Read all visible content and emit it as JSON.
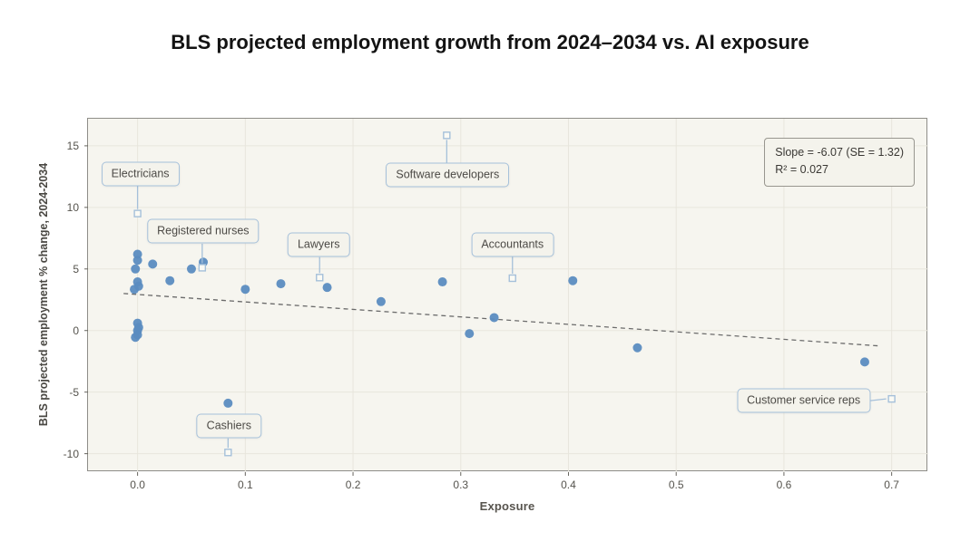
{
  "page": {
    "title": "BLS projected employment growth from 2024–2034 vs. AI exposure"
  },
  "chart_data": {
    "type": "scatter",
    "title": "BLS projected employment growth from 2024–2034 vs. AI exposure",
    "xlabel": "Exposure",
    "ylabel": "BLS projected employment % change, 2024-2034",
    "xlim": [
      -0.046,
      0.734
    ],
    "ylim": [
      -11.5,
      17.2
    ],
    "x_ticks": [
      0.0,
      0.1,
      0.2,
      0.3,
      0.4,
      0.5,
      0.6,
      0.7
    ],
    "x_tick_labels": [
      "0.0",
      "0.1",
      "0.2",
      "0.3",
      "0.4",
      "0.5",
      "0.6",
      "0.7"
    ],
    "y_ticks": [
      -10,
      -5,
      0,
      5,
      10,
      15
    ],
    "y_tick_labels": [
      "-10",
      "-5",
      "0",
      "5",
      "10",
      "15"
    ],
    "grid": true,
    "legend": null,
    "colors": {
      "point": "#5b8cc0",
      "plot_bg": "#f6f5ef",
      "grid": "#e8e6dd",
      "callout_border": "#a5c0da",
      "marker_fill": "#fbfaf4",
      "trend": "#6b6b6b",
      "tick": "#66645e"
    },
    "points": [
      [
        0.0,
        6.2
      ],
      [
        0.0,
        5.7
      ],
      [
        -0.002,
        5.0
      ],
      [
        0.0,
        3.95
      ],
      [
        0.001,
        3.6
      ],
      [
        -0.003,
        3.35
      ],
      [
        0.0,
        0.6
      ],
      [
        0.001,
        0.25
      ],
      [
        0.0,
        0.0
      ],
      [
        0.0,
        -0.35
      ],
      [
        -0.002,
        -0.55
      ],
      [
        0.014,
        5.4
      ],
      [
        0.03,
        4.05
      ],
      [
        0.05,
        5.0
      ],
      [
        0.061,
        5.55
      ],
      [
        0.084,
        -5.9
      ],
      [
        0.1,
        3.35
      ],
      [
        0.133,
        3.8
      ],
      [
        0.176,
        3.5
      ],
      [
        0.226,
        2.35
      ],
      [
        0.283,
        3.95
      ],
      [
        0.308,
        -0.25
      ],
      [
        0.331,
        1.05
      ],
      [
        0.404,
        4.05
      ],
      [
        0.464,
        -1.4
      ],
      [
        0.675,
        -2.55
      ]
    ],
    "annotations": [
      {
        "label": "Electricians",
        "x": 0.0,
        "y": 9.5,
        "box_dx": 3,
        "box_dy": -44,
        "attach": "bottom"
      },
      {
        "label": "Registered nurses",
        "x": 0.06,
        "y": 5.1,
        "box_dx": 1,
        "box_dy": -40,
        "attach": "bottom"
      },
      {
        "label": "Lawyers",
        "x": 0.169,
        "y": 4.3,
        "box_dx": -1,
        "box_dy": -36,
        "attach": "bottom"
      },
      {
        "label": "Software developers",
        "x": 0.287,
        "y": 15.85,
        "box_dx": 1,
        "box_dy": 44,
        "attach": "top"
      },
      {
        "label": "Accountants",
        "x": 0.348,
        "y": 4.25,
        "box_dx": 0,
        "box_dy": -37,
        "attach": "bottom"
      },
      {
        "label": "Cashiers",
        "x": 0.084,
        "y": -9.9,
        "box_dx": 1,
        "box_dy": -29,
        "attach": "bottom"
      },
      {
        "label": "Customer service reps",
        "x": 0.7,
        "y": -5.55,
        "box_dx": -97,
        "box_dy": 2,
        "attach": "right"
      }
    ],
    "trend_line": {
      "slope": -6.07,
      "intercept": 2.93,
      "x_start": -0.013,
      "x_end": 0.687,
      "style": "dashed"
    },
    "stats_box": {
      "line1": "Slope = -6.07 (SE = 1.32)",
      "line2": "R² = 0.027"
    }
  }
}
